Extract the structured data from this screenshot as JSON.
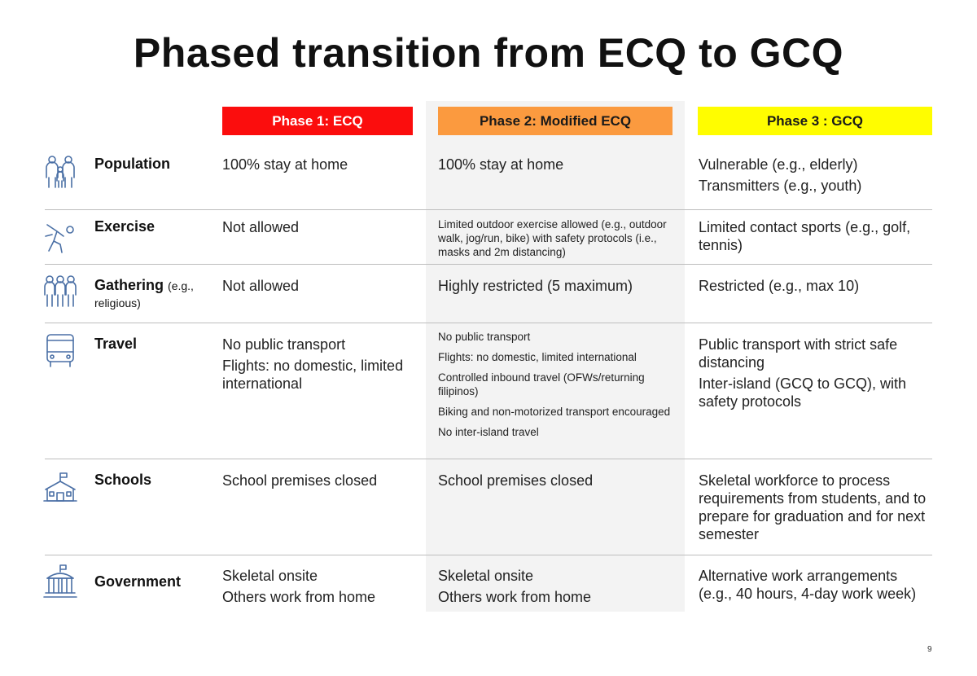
{
  "title": "Phased transition from ECQ to GCQ",
  "colors": {
    "phase1": "#fb0d0d",
    "phase2": "#fb9a3f",
    "phase3": "#fffd00",
    "icon": "#4a6fa5"
  },
  "phases": [
    {
      "label": "Phase 1: ECQ"
    },
    {
      "label": "Phase 2: Modified ECQ"
    },
    {
      "label": "Phase 3 : GCQ"
    }
  ],
  "rows": [
    {
      "icon": "family-icon",
      "label": "Population",
      "label_sub": "",
      "phase1": [
        "100% stay at home"
      ],
      "phase2": [
        "100% stay at home"
      ],
      "phase3": [
        "Vulnerable (e.g., elderly)",
        "Transmitters (e.g., youth)"
      ]
    },
    {
      "icon": "exercise-icon",
      "label": "Exercise",
      "label_sub": "",
      "phase1": [
        "Not allowed"
      ],
      "phase2": [
        "Limited outdoor exercise allowed (e.g., outdoor walk, jog/run, bike) with safety protocols (i.e., masks and 2m distancing)"
      ],
      "phase3": [
        "Limited contact sports  (e.g., golf, tennis)"
      ]
    },
    {
      "icon": "group-icon",
      "label": "Gathering",
      "label_sub": "(e.g., religious)",
      "phase1": [
        "Not allowed"
      ],
      "phase2": [
        "Highly restricted (5 maximum)"
      ],
      "phase3": [
        "Restricted (e.g., max 10)"
      ]
    },
    {
      "icon": "bus-icon",
      "label": "Travel",
      "label_sub": "",
      "phase1": [
        "No public transport",
        "Flights: no domestic, limited international"
      ],
      "phase2": [
        "No public transport",
        "Flights: no domestic, limited international",
        "Controlled inbound travel (OFWs/returning filipinos)",
        "Biking and non-motorized transport encouraged",
        "No inter-island travel"
      ],
      "phase3": [
        "Public transport with strict safe distancing",
        "Inter-island (GCQ to GCQ), with safety protocols"
      ]
    },
    {
      "icon": "school-icon",
      "label": "Schools",
      "label_sub": "",
      "phase1": [
        "School premises closed"
      ],
      "phase2": [
        "School premises closed"
      ],
      "phase3": [
        "Skeletal workforce to process requirements from students, and to  prepare for graduation and for next semester"
      ]
    },
    {
      "icon": "government-building-icon",
      "label": "Government",
      "label_sub": "",
      "phase1": [
        "Skeletal onsite",
        "Others work from home"
      ],
      "phase2": [
        "Skeletal onsite",
        "Others work from home"
      ],
      "phase3": [
        "Alternative work arrangements (e.g., 40 hours, 4-day work week)"
      ]
    }
  ],
  "page_number": "9"
}
